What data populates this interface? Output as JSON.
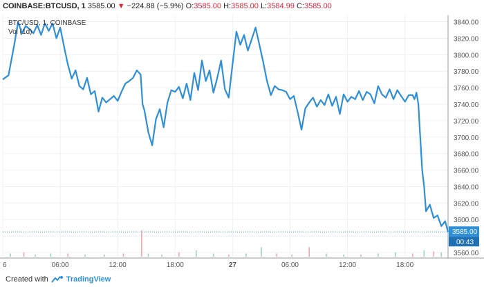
{
  "header": {
    "symbol": "COINBASE:BTCUSD, 1",
    "last": "3585.00",
    "change_arrow": "▼",
    "change": "−224.88 (−5.9%)",
    "o_label": "O:",
    "o_value": "3585.00",
    "h_label": "H:",
    "h_value": "3585.00",
    "l_label": "L:",
    "l_value": "3584.99",
    "c_label": "C:",
    "c_value": "3585.00"
  },
  "legend": {
    "series_label": "BTC/USD, 1, COINBASE",
    "volume_label": "Vol (1d)"
  },
  "price_badge": {
    "price": "3585.00",
    "countdown": "00:43"
  },
  "footer": {
    "created_with": "Created with",
    "brand": "TradingView",
    "logo_icon": "tradingview-logo-icon"
  },
  "colors": {
    "line": "#2e8fd6",
    "down": "#e0263a",
    "grid": "#eef0f3",
    "badge": "#2e8fd6",
    "vol_up": "#9fd3b6",
    "vol_down": "#f2a7ae"
  },
  "chart_data": {
    "type": "line",
    "title": "BTC/USD, 1, COINBASE",
    "y_ticks": [
      3560,
      3580,
      3600,
      3620,
      3640,
      3660,
      3680,
      3700,
      3720,
      3740,
      3760,
      3780,
      3800,
      3820,
      3840
    ],
    "ylim": [
      3555,
      3848
    ],
    "x_tick_labels": [
      "6",
      "06:00",
      "12:00",
      "18:00",
      "27",
      "06:00",
      "12:00",
      "18:00"
    ],
    "x_tick_hours": [
      0,
      6,
      12,
      18,
      24,
      30,
      36,
      42
    ],
    "xlim_hours": [
      0,
      46.5
    ],
    "grid": true,
    "series": [
      {
        "x_hours": [
          0,
          0.6,
          1.2,
          1.6,
          2.0,
          2.4,
          2.8,
          3.2,
          3.6,
          4.0,
          4.4,
          4.8,
          5.2,
          5.6,
          6.0,
          6.4,
          6.8,
          7.2,
          7.6,
          8.0,
          8.4,
          8.8,
          9.2,
          9.6,
          10.0,
          10.4,
          10.8,
          11.2,
          11.6,
          12.0,
          12.4,
          12.8,
          13.2,
          13.6,
          14.0,
          14.4,
          14.6,
          14.8,
          15.2,
          15.6,
          16.0,
          16.4,
          16.8,
          17.2,
          17.6,
          18.0,
          18.4,
          18.8,
          19.2,
          19.6,
          20.0,
          20.4,
          20.8,
          21.2,
          21.6,
          22.0,
          22.4,
          22.8,
          23.2,
          23.6,
          24.0,
          24.4,
          24.8,
          25.2,
          25.6,
          26.0,
          26.2,
          26.4,
          26.8,
          27.2,
          27.6,
          28.0,
          28.4,
          28.8,
          29.2,
          29.6,
          30.0,
          30.4,
          30.8,
          31.2,
          31.6,
          32.0,
          32.4,
          32.8,
          33.2,
          33.6,
          34.0,
          34.4,
          34.8,
          35.2,
          35.6,
          36.0,
          36.4,
          36.8,
          37.2,
          37.6,
          38.0,
          38.4,
          38.8,
          39.2,
          39.6,
          40.0,
          40.4,
          40.8,
          41.2,
          41.6,
          42.0,
          42.4,
          42.8,
          43.0,
          43.2,
          43.4,
          43.6,
          43.8,
          44.0,
          44.2,
          44.6,
          45.0,
          45.4,
          45.8,
          46.2,
          46.5
        ],
        "y": [
          3770,
          3775,
          3812,
          3840,
          3826,
          3835,
          3831,
          3826,
          3836,
          3824,
          3838,
          3829,
          3838,
          3820,
          3833,
          3810,
          3788,
          3771,
          3781,
          3762,
          3758,
          3772,
          3752,
          3756,
          3731,
          3748,
          3742,
          3746,
          3750,
          3744,
          3755,
          3765,
          3768,
          3772,
          3781,
          3776,
          3740,
          3732,
          3706,
          3690,
          3722,
          3734,
          3712,
          3742,
          3757,
          3755,
          3761,
          3747,
          3765,
          3745,
          3778,
          3757,
          3793,
          3768,
          3781,
          3754,
          3772,
          3793,
          3758,
          3748,
          3789,
          3828,
          3812,
          3824,
          3805,
          3819,
          3826,
          3833,
          3812,
          3791,
          3768,
          3751,
          3762,
          3758,
          3757,
          3755,
          3746,
          3750,
          3730,
          3709,
          3735,
          3742,
          3748,
          3737,
          3745,
          3739,
          3752,
          3738,
          3749,
          3728,
          3752,
          3743,
          3749,
          3746,
          3756,
          3745,
          3755,
          3752,
          3741,
          3762,
          3752,
          3748,
          3758,
          3746,
          3757,
          3750,
          3743,
          3751,
          3751,
          3746,
          3754,
          3740,
          3700,
          3660,
          3640,
          3610,
          3618,
          3602,
          3605,
          3592,
          3598,
          3585
        ]
      }
    ],
    "volume": {
      "x_hours": [
        0.8,
        2.2,
        3.4,
        5.0,
        6.8,
        8.6,
        10.6,
        12.6,
        14.5,
        15.2,
        16.6,
        18.4,
        20.2,
        22.0,
        23.6,
        25.4,
        27.0,
        28.6,
        30.2,
        32.0,
        33.8,
        35.6,
        37.4,
        39.2,
        41.0,
        42.8,
        44.0,
        45.0,
        45.8
      ],
      "values": [
        3,
        4,
        2,
        3,
        3,
        2,
        2,
        3,
        25,
        3,
        2,
        4,
        6,
        3,
        2,
        3,
        9,
        3,
        2,
        9,
        3,
        2,
        2,
        3,
        4,
        3,
        6,
        5,
        4
      ],
      "up": [
        true,
        false,
        true,
        true,
        false,
        true,
        true,
        false,
        false,
        true,
        true,
        false,
        true,
        true,
        false,
        true,
        true,
        false,
        true,
        false,
        true,
        true,
        false,
        true,
        true,
        false,
        true,
        false,
        true
      ]
    },
    "last_price": 3585.0
  }
}
